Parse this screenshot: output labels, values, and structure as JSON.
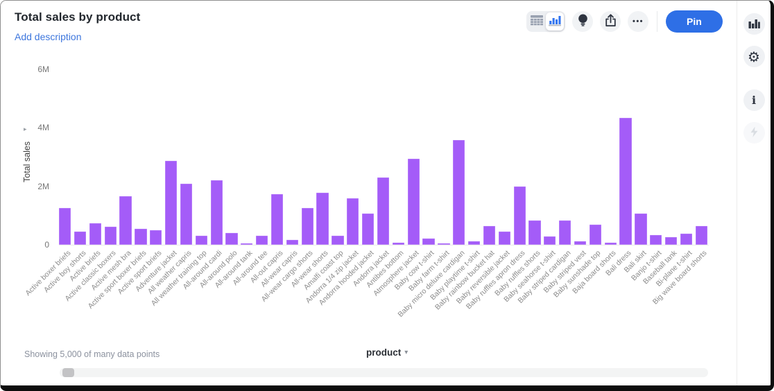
{
  "header": {
    "title": "Total sales by product",
    "add_description": "Add description"
  },
  "toolbar": {
    "pin_label": "Pin",
    "more_label": "•••"
  },
  "icons": {
    "gear": "⚙",
    "info": "i",
    "y_axis_arrow": "▸",
    "caret_down": "▾"
  },
  "footer": {
    "status": "Showing 5,000 of many data points"
  },
  "chart_data": {
    "type": "bar",
    "title": "Total sales by product",
    "xlabel": "product",
    "ylabel": "Total sales",
    "unit": "M",
    "ylim": [
      0,
      6
    ],
    "grid": false,
    "legend": false,
    "bar_color": "#a45cf8",
    "yticks": [
      {
        "label": "0",
        "value": 0
      },
      {
        "label": "2M",
        "value": 2
      },
      {
        "label": "4M",
        "value": 4
      },
      {
        "label": "6M",
        "value": 6
      }
    ],
    "categories": [
      "Active boxer briefs",
      "Active boy shorts",
      "Active briefs",
      "Active classic boxers",
      "Active mesh bra",
      "Active sport boxer briefs",
      "Active sport briefs",
      "Adventure jacket",
      "All weather capris",
      "All weather training top",
      "All-around cardi",
      "All-around polo",
      "All-around tank",
      "All-around tee",
      "All-out capris",
      "All-wear capris",
      "All-wear cargo shorts",
      "All-wear shorts",
      "Amalfi coast top",
      "Andorra 1/4 zip jacket",
      "Andorra hooded jacket",
      "Andorra jacket",
      "Antibes bottom",
      "Atmosphere jacket",
      "Baby cow t-shirt",
      "Baby farm t-shirt",
      "Baby micro deluxe cardigan",
      "Baby playtime t-shirt",
      "Baby rainbow bucket hat",
      "Baby reversible jacket",
      "Baby ruffles apron dress",
      "Baby ruffles shorts",
      "Baby seahorse t-shirt",
      "Baby striped cardigan",
      "Baby striped vest",
      "Baby sunshade top",
      "Baja board shorts",
      "Bali dress",
      "Bali skirt",
      "Banjo t-shirt",
      "Baseball tank",
      "Bi-plane t-shirt",
      "Big wave board shorts"
    ],
    "values": [
      1.25,
      0.46,
      0.74,
      0.61,
      1.65,
      0.54,
      0.5,
      2.88,
      2.09,
      0.31,
      2.2,
      0.4,
      0.05,
      0.31,
      1.72,
      0.16,
      1.25,
      1.77,
      0.31,
      1.58,
      1.07,
      2.3,
      0.07,
      2.93,
      0.21,
      0.05,
      3.58,
      0.13,
      0.65,
      0.45,
      2.0,
      0.84,
      0.28,
      0.82,
      0.11,
      0.69,
      0.06,
      4.33,
      1.06,
      0.33,
      0.26,
      0.38,
      0.65
    ]
  }
}
